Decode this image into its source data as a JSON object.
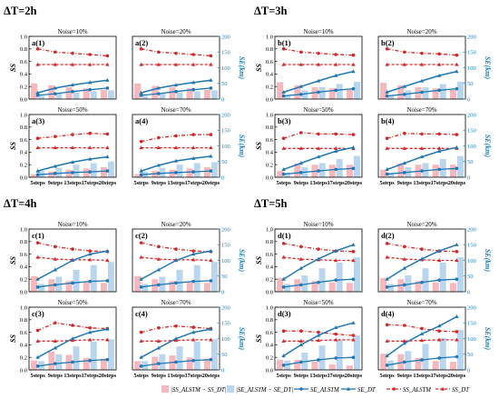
{
  "colors": {
    "ss_alstm": "#d62728",
    "ss_dt": "#d62728",
    "se_alstm": "#1f77b4",
    "se_dt": "#1f77b4",
    "bar_ss": "#f4b8bd",
    "bar_se": "#b9d6ee",
    "right_axis": "#1a7fc1"
  },
  "chart_data": {
    "type": "bar",
    "x_categories": [
      "5steps",
      "9steps",
      "13steps",
      "17steps",
      "20steps"
    ],
    "left_axis": {
      "label": "SS",
      "range": [
        0,
        1.0
      ],
      "ticks": [
        "0.0",
        "0.2",
        "0.4",
        "0.6",
        "0.8",
        "1.0"
      ]
    },
    "right_axis": {
      "label": "SE(km)",
      "range": [
        0,
        200
      ],
      "ticks": [
        "0",
        "50",
        "100",
        "150",
        "200"
      ]
    },
    "legend": [
      {
        "key": "bar_ss",
        "label": "|SS_ALSTM − SS_DT|",
        "kind": "bar"
      },
      {
        "key": "bar_se",
        "label": "|SE_ALSTM − SE_DT|",
        "kind": "bar"
      },
      {
        "key": "se_alstm",
        "label": "SE_ALSTM",
        "kind": "line-dot"
      },
      {
        "key": "se_dt",
        "label": "SE_DT",
        "kind": "line-tri"
      },
      {
        "key": "ss_alstm",
        "label": "SS_ALSTM",
        "kind": "dash-dot"
      },
      {
        "key": "ss_dt",
        "label": "SS_DT",
        "kind": "dash-tri"
      }
    ],
    "groups": [
      {
        "title": "ΔT=2h",
        "panels": [
          {
            "tag": "a(1)",
            "noise": "Noise=10%",
            "ss_alstm": [
              0.8,
              0.75,
              0.73,
              0.71,
              0.69
            ],
            "ss_dt": [
              0.55,
              0.55,
              0.55,
              0.55,
              0.55
            ],
            "se_alstm": [
              12,
              17,
              24,
              30,
              35
            ],
            "se_dt": [
              20,
              35,
              45,
              53,
              60
            ],
            "bar_ss": [
              0.25,
              0.22,
              0.19,
              0.17,
              0.15
            ],
            "bar_se": [
              10,
              18,
              22,
              25,
              28
            ]
          },
          {
            "tag": "a(2)",
            "noise": "Noise=20%",
            "ss_alstm": [
              0.8,
              0.75,
              0.73,
              0.71,
              0.69
            ],
            "ss_dt": [
              0.55,
              0.55,
              0.55,
              0.55,
              0.55
            ],
            "se_alstm": [
              12,
              17,
              24,
              30,
              35
            ],
            "se_dt": [
              20,
              35,
              45,
              53,
              60
            ],
            "bar_ss": [
              0.25,
              0.21,
              0.19,
              0.17,
              0.15
            ],
            "bar_se": [
              10,
              18,
              22,
              25,
              28
            ]
          },
          {
            "tag": "a(3)",
            "noise": "Noise=50%",
            "ss_alstm": [
              0.62,
              0.65,
              0.68,
              0.7,
              0.69
            ],
            "ss_dt": [
              0.47,
              0.47,
              0.47,
              0.47,
              0.47
            ],
            "se_alstm": [
              8,
              12,
              15,
              17,
              20
            ],
            "se_dt": [
              20,
              35,
              48,
              58,
              65
            ],
            "bar_ss": [
              0.05,
              0.09,
              0.12,
              0.14,
              0.16
            ],
            "bar_se": [
              20,
              30,
              40,
              45,
              50
            ]
          },
          {
            "tag": "a(4)",
            "noise": "Noise=70%",
            "ss_alstm": [
              0.57,
              0.63,
              0.66,
              0.68,
              0.68
            ],
            "ss_dt": [
              0.47,
              0.47,
              0.47,
              0.47,
              0.47
            ],
            "se_alstm": [
              8,
              12,
              15,
              17,
              20
            ],
            "se_dt": [
              20,
              38,
              52,
              60,
              67
            ],
            "bar_ss": [
              0.05,
              0.1,
              0.12,
              0.14,
              0.16
            ],
            "bar_se": [
              18,
              30,
              40,
              45,
              48
            ]
          }
        ]
      },
      {
        "title": "ΔT=3h",
        "panels": [
          {
            "tag": "b(1)",
            "noise": "Noise=10%",
            "ss_alstm": [
              0.8,
              0.75,
              0.73,
              0.71,
              0.7
            ],
            "ss_dt": [
              0.55,
              0.55,
              0.55,
              0.55,
              0.55
            ],
            "se_alstm": [
              10,
              15,
              22,
              28,
              33
            ],
            "se_dt": [
              22,
              40,
              58,
              75,
              88
            ],
            "bar_ss": [
              0.27,
              0.22,
              0.19,
              0.17,
              0.15
            ],
            "bar_se": [
              12,
              28,
              38,
              48,
              55
            ]
          },
          {
            "tag": "b(2)",
            "noise": "Noise=20%",
            "ss_alstm": [
              0.8,
              0.75,
              0.73,
              0.72,
              0.7
            ],
            "ss_dt": [
              0.55,
              0.55,
              0.55,
              0.55,
              0.55
            ],
            "se_alstm": [
              10,
              15,
              22,
              28,
              33
            ],
            "se_dt": [
              22,
              40,
              58,
              75,
              88
            ],
            "bar_ss": [
              0.26,
              0.22,
              0.19,
              0.17,
              0.15
            ],
            "bar_se": [
              12,
              28,
              38,
              48,
              55
            ]
          },
          {
            "tag": "b(3)",
            "noise": "Noise=50%",
            "ss_alstm": [
              0.62,
              0.71,
              0.69,
              0.69,
              0.68
            ],
            "ss_dt": [
              0.46,
              0.46,
              0.46,
              0.46,
              0.46
            ],
            "se_alstm": [
              10,
              15,
              20,
              25,
              28
            ],
            "se_dt": [
              25,
              45,
              65,
              83,
              95
            ],
            "bar_ss": [
              0.1,
              0.22,
              0.2,
              0.2,
              0.2
            ],
            "bar_se": [
              15,
              32,
              45,
              58,
              68
            ]
          },
          {
            "tag": "b(4)",
            "noise": "Noise=70%",
            "ss_alstm": [
              0.62,
              0.7,
              0.69,
              0.69,
              0.68
            ],
            "ss_dt": [
              0.46,
              0.46,
              0.46,
              0.46,
              0.46
            ],
            "se_alstm": [
              10,
              15,
              20,
              25,
              28
            ],
            "se_dt": [
              25,
              45,
              65,
              83,
              95
            ],
            "bar_ss": [
              0.12,
              0.22,
              0.2,
              0.2,
              0.2
            ],
            "bar_se": [
              15,
              32,
              45,
              58,
              68
            ]
          }
        ]
      },
      {
        "title": "ΔT=4h",
        "panels": [
          {
            "tag": "c(1)",
            "noise": "Noise=10%",
            "ss_alstm": [
              0.78,
              0.72,
              0.68,
              0.65,
              0.64
            ],
            "ss_dt": [
              0.55,
              0.52,
              0.51,
              0.51,
              0.5
            ],
            "se_alstm": [
              15,
              22,
              28,
              33,
              35
            ],
            "se_dt": [
              40,
              70,
              100,
              120,
              130
            ],
            "bar_ss": [
              0.25,
              0.2,
              0.17,
              0.15,
              0.14
            ],
            "bar_se": [
              25,
              48,
              70,
              85,
              95
            ]
          },
          {
            "tag": "c(2)",
            "noise": "Noise=20%",
            "ss_alstm": [
              0.78,
              0.72,
              0.68,
              0.65,
              0.64
            ],
            "ss_dt": [
              0.55,
              0.52,
              0.51,
              0.51,
              0.5
            ],
            "se_alstm": [
              15,
              22,
              28,
              33,
              35
            ],
            "se_dt": [
              40,
              70,
              100,
              120,
              130
            ],
            "bar_ss": [
              0.25,
              0.2,
              0.17,
              0.15,
              0.14
            ],
            "bar_se": [
              25,
              48,
              70,
              85,
              95
            ]
          },
          {
            "tag": "c(3)",
            "noise": "Noise=50%",
            "ss_alstm": [
              0.63,
              0.75,
              0.71,
              0.67,
              0.66
            ],
            "ss_dt": [
              0.46,
              0.46,
              0.47,
              0.48,
              0.48
            ],
            "se_alstm": [
              12,
              20,
              25,
              30,
              33
            ],
            "se_dt": [
              40,
              70,
              100,
              120,
              130
            ],
            "bar_ss": [
              0.15,
              0.29,
              0.24,
              0.19,
              0.18
            ],
            "bar_se": [
              28,
              50,
              75,
              90,
              98
            ]
          },
          {
            "tag": "c(4)",
            "noise": "Noise=70%",
            "ss_alstm": [
              0.6,
              0.67,
              0.7,
              0.68,
              0.66
            ],
            "ss_dt": [
              0.46,
              0.46,
              0.47,
              0.48,
              0.48
            ],
            "se_alstm": [
              12,
              20,
              25,
              30,
              33
            ],
            "se_dt": [
              40,
              70,
              100,
              120,
              130
            ],
            "bar_ss": [
              0.14,
              0.21,
              0.23,
              0.2,
              0.18
            ],
            "bar_se": [
              28,
              50,
              75,
              90,
              98
            ]
          }
        ]
      },
      {
        "title": "ΔT=5h",
        "panels": [
          {
            "tag": "d(1)",
            "noise": "Noise=10%",
            "ss_alstm": [
              0.77,
              0.72,
              0.68,
              0.65,
              0.64
            ],
            "ss_dt": [
              0.55,
              0.52,
              0.51,
              0.5,
              0.5
            ],
            "se_alstm": [
              15,
              22,
              30,
              37,
              40
            ],
            "se_dt": [
              40,
              75,
              105,
              130,
              150
            ],
            "bar_ss": [
              0.22,
              0.2,
              0.17,
              0.15,
              0.14
            ],
            "bar_se": [
              25,
              52,
              75,
              93,
              110
            ]
          },
          {
            "tag": "d(2)",
            "noise": "Noise=20%",
            "ss_alstm": [
              0.77,
              0.72,
              0.68,
              0.65,
              0.64
            ],
            "ss_dt": [
              0.55,
              0.52,
              0.51,
              0.5,
              0.5
            ],
            "se_alstm": [
              15,
              22,
              30,
              37,
              40
            ],
            "se_dt": [
              40,
              75,
              105,
              130,
              150
            ],
            "bar_ss": [
              0.22,
              0.2,
              0.17,
              0.15,
              0.14
            ],
            "bar_se": [
              25,
              52,
              75,
              93,
              110
            ]
          },
          {
            "tag": "d(3)",
            "noise": "Noise=50%",
            "ss_alstm": [
              0.62,
              0.62,
              0.6,
              0.57,
              0.55
            ],
            "ss_dt": [
              0.46,
              0.46,
              0.47,
              0.48,
              0.48
            ],
            "se_alstm": [
              15,
              25,
              32,
              38,
              40
            ],
            "se_dt": [
              45,
              80,
              110,
              135,
              150
            ],
            "bar_ss": [
              0.16,
              0.16,
              0.13,
              0.09,
              0.07
            ],
            "bar_se": [
              30,
              55,
              78,
              97,
              110
            ]
          },
          {
            "tag": "d(4)",
            "noise": "Noise=70%",
            "ss_alstm": [
              0.72,
              0.71,
              0.66,
              0.62,
              0.61
            ],
            "ss_dt": [
              0.46,
              0.46,
              0.47,
              0.48,
              0.48
            ],
            "se_alstm": [
              15,
              25,
              32,
              38,
              42
            ],
            "se_dt": [
              45,
              85,
              115,
              140,
              170
            ],
            "bar_ss": [
              0.26,
              0.25,
              0.19,
              0.14,
              0.13
            ],
            "bar_se": [
              30,
              60,
              83,
              102,
              128
            ]
          }
        ]
      }
    ]
  }
}
